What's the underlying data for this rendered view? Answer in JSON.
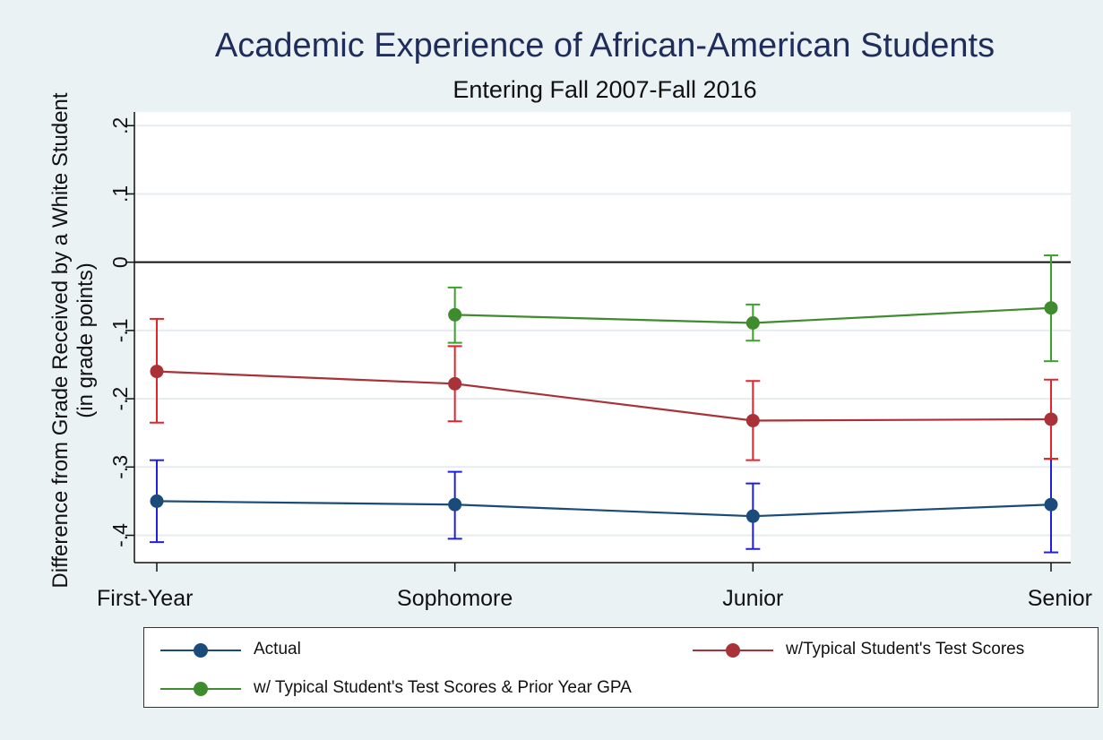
{
  "colors": {
    "actual": "#1a4b7a",
    "actual_error": "#1f1fe0",
    "test_scores": "#a83237",
    "test_scores_error": "#e3242b",
    "test_gpa": "#3f8c2e",
    "test_gpa_error": "#3aa22b",
    "zero_line": "#111111",
    "grid": "#e6ecef"
  },
  "chart_data": {
    "type": "line",
    "title": "Academic Experience of African-American Students",
    "subtitle": "Entering Fall 2007-Fall 2016",
    "ylabel_line1": "Difference from Grade Received by a White Student",
    "ylabel_line2": "(in grade points)",
    "xlabel": "",
    "categories": [
      "First-Year",
      "Sophomore",
      "Junior",
      "Senior"
    ],
    "ylim": [
      -0.44,
      0.22
    ],
    "yticks": [
      0.2,
      0.1,
      0,
      -0.1,
      -0.2,
      -0.3,
      -0.4
    ],
    "ytick_labels": [
      ".2",
      ".1",
      "0",
      "-.1",
      "-.2",
      "-.3",
      "-.4"
    ],
    "reference_line": 0,
    "grid": true,
    "legend_position": "bottom",
    "series": [
      {
        "name": "Actual",
        "values": [
          -0.35,
          -0.355,
          -0.372,
          -0.355
        ],
        "lower": [
          -0.41,
          -0.405,
          -0.42,
          -0.425
        ],
        "upper": [
          -0.29,
          -0.307,
          -0.324,
          -0.288
        ]
      },
      {
        "name": "w/Typical Student's Test Scores",
        "values": [
          -0.16,
          -0.178,
          -0.232,
          -0.23
        ],
        "lower": [
          -0.235,
          -0.233,
          -0.29,
          -0.288
        ],
        "upper": [
          -0.083,
          -0.123,
          -0.174,
          -0.172
        ]
      },
      {
        "name": "w/ Typical Student's Test Scores & Prior Year GPA",
        "values": [
          null,
          -0.077,
          -0.089,
          -0.067
        ],
        "lower": [
          null,
          -0.118,
          -0.115,
          -0.145
        ],
        "upper": [
          null,
          -0.037,
          -0.062,
          0.01
        ]
      }
    ]
  }
}
